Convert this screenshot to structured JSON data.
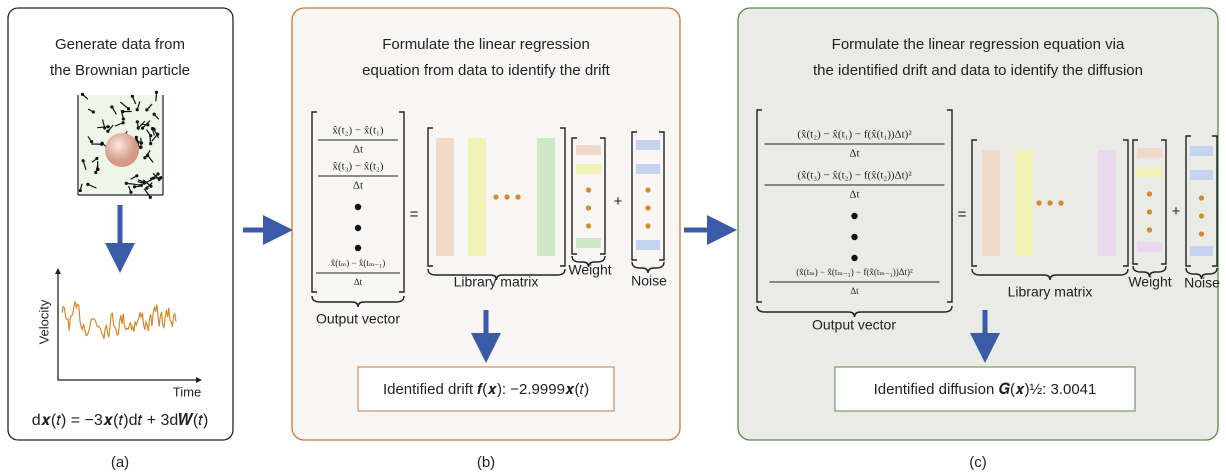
{
  "panel_a": {
    "title_lines": [
      "Generate data from",
      "the Brownian particle"
    ],
    "y_axis_label": "Velocity",
    "x_axis_label": "Time",
    "equation": "d𝒙(𝑡) = −3𝒙(𝑡)d𝑡 + 3d𝑾(𝑡)",
    "caption": "(a)"
  },
  "panel_b": {
    "title_lines": [
      "Formulate the linear regression",
      "equation from data to identify the drift"
    ],
    "output_rows": [
      {
        "numerator": "x̂(t₂) − x̂(t₁)",
        "denominator": "Δt"
      },
      {
        "numerator": "x̂(t₃) − x̂(t₂)",
        "denominator": "Δt"
      },
      {
        "numerator": "x̂(tₘ) − x̂(tₘ₋₁)",
        "denominator": "Δt"
      }
    ],
    "equals": "=",
    "plus": "+",
    "output_label": "Output vector",
    "library_label": "Library matrix",
    "weight_label": "Weight",
    "noise_label": "Noise",
    "result": "Identified drift 𝒇(𝒙): −2.9999𝒙(𝑡)",
    "caption": "(b)"
  },
  "panel_c": {
    "title_lines": [
      "Formulate the linear regression equation via",
      "the identified drift and data to identify the diffusion"
    ],
    "output_rows": [
      {
        "numerator": "(x̂(t₂) − x̂(t₁) − f(x̂(t₁))Δt)²",
        "denominator": "Δt"
      },
      {
        "numerator": "(x̂(t₃) − x̂(t₂) − f(x̂(t₂))Δt)²",
        "denominator": "Δt"
      },
      {
        "numerator": "(x̂(tₘ) − x̂(tₘ₋₁) − f(x̂(tₘ₋₁))Δt)²",
        "denominator": "Δt"
      }
    ],
    "equals": "=",
    "plus": "+",
    "output_label": "Output vector",
    "library_label": "Library matrix",
    "weight_label": "Weight",
    "noise_label": "Noise",
    "result": "Identified diffusion 𝑮(𝒙)½: 3.0041",
    "caption": "(c)"
  }
}
